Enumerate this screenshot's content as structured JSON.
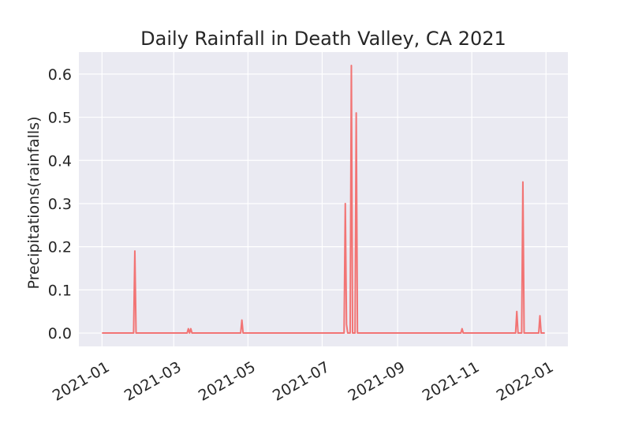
{
  "chart_data": {
    "type": "line",
    "title": "Daily Rainfall in Death Valley, CA 2021",
    "xlabel": "",
    "ylabel": "Precipitations(rainfalls)",
    "x_range": [
      "2020-12-13",
      "2022-01-19"
    ],
    "ylim": [
      -0.031,
      0.651
    ],
    "grid": true,
    "legend": "none",
    "x_ticks": [
      "2021-01",
      "2021-03",
      "2021-05",
      "2021-07",
      "2021-09",
      "2021-11",
      "2022-01"
    ],
    "y_ticks": [
      "0.0",
      "0.1",
      "0.2",
      "0.3",
      "0.4",
      "0.5",
      "0.6"
    ],
    "colors": {
      "line": "#f27474",
      "plot_bg": "#eaeaf2",
      "grid": "#ffffff"
    },
    "series": [
      {
        "x": [
          "2021-01-01",
          "2021-01-27",
          "2021-01-28",
          "2021-01-29",
          "2021-03-12",
          "2021-03-13",
          "2021-03-14",
          "2021-03-15",
          "2021-03-16",
          "2021-04-25",
          "2021-04-26",
          "2021-04-27",
          "2021-07-19",
          "2021-07-20",
          "2021-07-21",
          "2021-07-22",
          "2021-07-24",
          "2021-07-25",
          "2021-07-26",
          "2021-07-28",
          "2021-07-29",
          "2021-07-30",
          "2021-10-23",
          "2021-10-24",
          "2021-10-25",
          "2021-12-07",
          "2021-12-08",
          "2021-12-09",
          "2021-12-12",
          "2021-12-13",
          "2021-12-14",
          "2021-12-26",
          "2021-12-27",
          "2021-12-28",
          "2021-12-31"
        ],
        "values": [
          0,
          0,
          0.19,
          0,
          0,
          0.01,
          0,
          0.01,
          0,
          0,
          0.03,
          0,
          0,
          0.3,
          0.02,
          0,
          0,
          0.62,
          0,
          0,
          0.51,
          0,
          0,
          0.01,
          0,
          0,
          0.05,
          0,
          0,
          0.35,
          0,
          0,
          0.04,
          0,
          0
        ]
      }
    ]
  }
}
